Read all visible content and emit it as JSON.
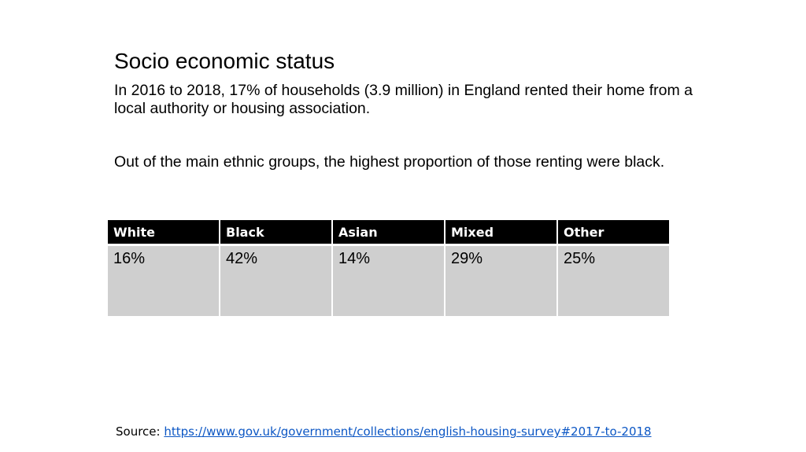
{
  "slide": {
    "title": "Socio economic status",
    "paragraph_1": "In 2016 to 2018, 17% of households (3.9 million) in England rented their home from a local authority or housing association.",
    "paragraph_2": "Out of the main ethnic groups, the highest proportion of those renting were black."
  },
  "table": {
    "headers": [
      "White",
      "Black",
      "Asian",
      "Mixed",
      "Other"
    ],
    "values": [
      "16%",
      "42%",
      "14%",
      "29%",
      "25%"
    ]
  },
  "source": {
    "label": "Source:",
    "link_text": "https://www.gov.uk/government/collections/english-housing-survey#2017-to-2018",
    "link_color": "#0b56c4"
  }
}
